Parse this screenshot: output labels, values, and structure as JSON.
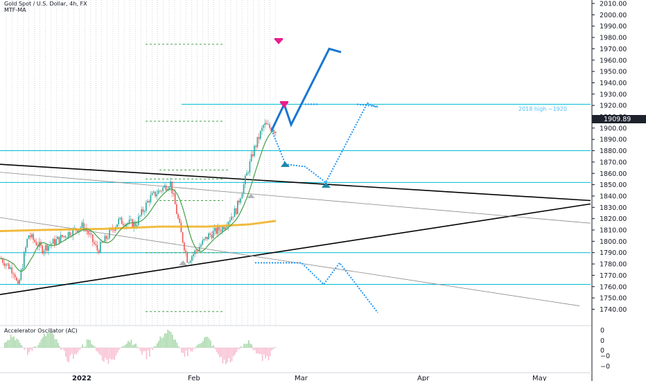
{
  "header": {
    "symbol_line": "Gold Spot / U.S. Dollar, 4h, FX",
    "indicator": "MTF-MA",
    "oscillator": "Accelerator Oscillator (AC)"
  },
  "chart_data": {
    "type": "candlestick",
    "symbol": "Gold Spot / U.S. Dollar",
    "interval": "4h",
    "exchange": "FX",
    "price_axis": {
      "ticks": [
        "2010.00",
        "2000.00",
        "1990.00",
        "1980.00",
        "1970.00",
        "1960.00",
        "1950.00",
        "1940.00",
        "1930.00",
        "1920.00",
        "1910.00",
        "1900.00",
        "1890.00",
        "1880.00",
        "1870.00",
        "1860.00",
        "1850.00",
        "1840.00",
        "1830.00",
        "1820.00",
        "1810.00",
        "1800.00",
        "1790.00",
        "1780.00",
        "1770.00",
        "1760.00",
        "1750.00",
        "1740.00"
      ],
      "range": [
        1734,
        2012
      ]
    },
    "last_price": "1909.89",
    "oscillator_axis": {
      "ticks": [
        "0",
        "0",
        "0",
        "−0",
        "−0"
      ]
    },
    "time_axis": {
      "labels": [
        "2022",
        "Feb",
        "Mar",
        "Apr",
        "May"
      ]
    },
    "horizontal_levels": [
      1921,
      1880,
      1852,
      1790,
      1762
    ],
    "annotation": "2018 high ~1920",
    "moving_average_orange": [
      [
        0,
        1809
      ],
      [
        60,
        1810
      ],
      [
        150,
        1811
      ],
      [
        230,
        1813
      ],
      [
        300,
        1813
      ],
      [
        360,
        1815
      ],
      [
        398,
        1818
      ]
    ],
    "trendlines": [
      {
        "color": "#000000",
        "from": [
          0,
          1868
        ],
        "to": [
          852,
          1836
        ]
      },
      {
        "color": "#000000",
        "from": [
          0,
          1753
        ],
        "to": [
          852,
          1833
        ]
      },
      {
        "color": "#888888",
        "from": [
          0,
          1861
        ],
        "to": [
          852,
          1816
        ]
      },
      {
        "color": "#888888",
        "from": [
          0,
          1821
        ],
        "to": [
          836,
          1743
        ]
      }
    ],
    "projection_main": [
      [
        392,
        1898
      ],
      [
        410,
        1921
      ],
      [
        420,
        1903
      ],
      [
        475,
        1970
      ],
      [
        492,
        1967
      ]
    ],
    "projection_bull_alt": [
      [
        392,
        1898
      ],
      [
        412,
        1868
      ],
      [
        440,
        1866
      ],
      [
        470,
        1852
      ],
      [
        530,
        1922
      ],
      [
        545,
        1918
      ]
    ],
    "projection_bear_alt": [
      [
        368,
        1781
      ],
      [
        435,
        1781
      ],
      [
        467,
        1762
      ],
      [
        490,
        1781
      ],
      [
        545,
        1737
      ]
    ],
    "colors": {
      "up": "#26a69a",
      "down": "#ef5350",
      "level": "#00bcd4",
      "ma_green": "#43a047",
      "ma_orange": "#f0b429",
      "projection": "#1976d2",
      "projection_dotted": "#2196f3",
      "marker_magenta": "#e91e8c",
      "marker_teal": "#26a69a",
      "last_price_bg": "#1e222d"
    }
  }
}
